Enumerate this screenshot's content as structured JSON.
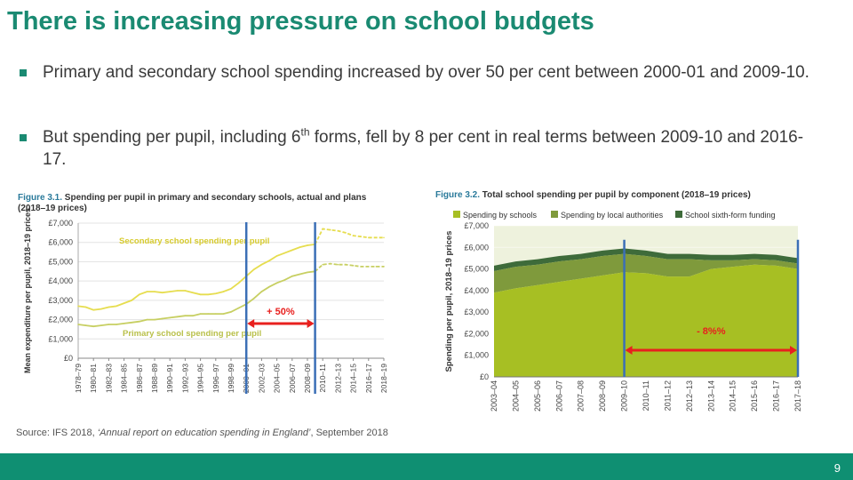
{
  "slide": {
    "title": "There is increasing pressure on school budgets",
    "bullets": [
      {
        "text": "Primary and secondary school spending increased by over 50 per cent between 2000-01 and 2009-10."
      },
      {
        "text_before": "But spending per pupil, including 6",
        "sup": "th",
        "text_after": " forms, fell by 8 per cent in real terms between 2009-10 and 2016-17."
      }
    ],
    "source_prefix": "Source: IFS 2018, ",
    "source_title": "‘Annual report on education spending in England’",
    "source_suffix": ", September 2018",
    "page_number": "9",
    "colors": {
      "title": "#1a8a72",
      "footer": "#0f8f72",
      "line": "#e6dd4f",
      "annotation_arrow": "#e8201e",
      "marker_line": "#3b6fb6",
      "area_schools": "#a7bf23",
      "area_local": "#7f9a3c",
      "area_sixth": "#3e6b3a"
    }
  },
  "chart_data": [
    {
      "type": "line",
      "figure_label": "Figure 3.1.",
      "title": "Spending per pupil in primary and secondary schools, actual and plans",
      "title_suffix": "(2018–19 prices)",
      "ylabel": "Mean expenditure per pupil, 2018–19 prices",
      "ylim": [
        0,
        7000
      ],
      "y_ticks": [
        "£0",
        "£1,000",
        "£2,000",
        "£3,000",
        "£4,000",
        "£5,000",
        "£6,000",
        "£7,000"
      ],
      "x_ticks": [
        "1978–79",
        "1980–81",
        "1982–83",
        "1984–85",
        "1986–87",
        "1988–89",
        "1990–91",
        "1992–93",
        "1994–95",
        "1996–97",
        "1998–99",
        "2000–01",
        "2002–03",
        "2004–05",
        "2006–07",
        "2008–09",
        "2010–11",
        "2012–13",
        "2014–15",
        "2016–17",
        "2018–19"
      ],
      "years": [
        1978,
        1979,
        1980,
        1981,
        1982,
        1983,
        1984,
        1985,
        1986,
        1987,
        1988,
        1989,
        1990,
        1991,
        1992,
        1993,
        1994,
        1995,
        1996,
        1997,
        1998,
        1999,
        2000,
        2001,
        2002,
        2003,
        2004,
        2005,
        2006,
        2007,
        2008,
        2009,
        2010,
        2011,
        2012,
        2013,
        2014,
        2015,
        2016,
        2017,
        2018
      ],
      "series": [
        {
          "name": "Secondary school spending per pupil",
          "solid_until": 2009,
          "values": [
            2700,
            2650,
            2500,
            2550,
            2650,
            2700,
            2850,
            3000,
            3300,
            3450,
            3450,
            3400,
            3450,
            3500,
            3500,
            3400,
            3300,
            3300,
            3350,
            3450,
            3600,
            3900,
            4250,
            4600,
            4850,
            5050,
            5300,
            5450,
            5600,
            5750,
            5850,
            5900,
            6700,
            6650,
            6600,
            6500,
            6350,
            6300,
            6250,
            6250,
            6250
          ]
        },
        {
          "name": "Primary school spending per pupil",
          "solid_until": 2009,
          "values": [
            1750,
            1700,
            1650,
            1700,
            1750,
            1750,
            1800,
            1850,
            1900,
            2000,
            2000,
            2050,
            2100,
            2150,
            2200,
            2200,
            2300,
            2300,
            2300,
            2300,
            2400,
            2600,
            2800,
            3100,
            3450,
            3700,
            3900,
            4050,
            4250,
            4350,
            4450,
            4500,
            4850,
            4900,
            4850,
            4850,
            4800,
            4750,
            4750,
            4750,
            4750
          ]
        }
      ],
      "markers": [
        2000,
        2009
      ],
      "annotation": {
        "label": "+ 50%",
        "from": 2000,
        "to": 2009
      }
    },
    {
      "type": "area",
      "figure_label": "Figure 3.2.",
      "title": "Total school spending per pupil by component (2018–19 prices)",
      "ylabel": "Spending per pupil, 2018–19 prices",
      "ylim": [
        0,
        7000
      ],
      "y_ticks": [
        "£0",
        "£1,000",
        "£2,000",
        "£3,000",
        "£4,000",
        "£5,000",
        "£6,000",
        "£7,000"
      ],
      "categories": [
        "2003–04",
        "2004–05",
        "2005–06",
        "2006–07",
        "2007–08",
        "2008–09",
        "2009–10",
        "2010–11",
        "2011–12",
        "2012–13",
        "2013–14",
        "2014–15",
        "2015–16",
        "2016–17",
        "2017–18"
      ],
      "legend": [
        "Spending by schools",
        "Spending by local authorities",
        "School sixth-form funding"
      ],
      "series": [
        {
          "name": "Spending by schools",
          "values": [
            3900,
            4100,
            4250,
            4400,
            4550,
            4700,
            4850,
            4800,
            4650,
            4650,
            5000,
            5100,
            5200,
            5150,
            5000
          ]
        },
        {
          "name": "Spending by local authorities",
          "values": [
            1000,
            1000,
            950,
            950,
            900,
            900,
            850,
            800,
            800,
            800,
            400,
            300,
            250,
            250,
            250
          ]
        },
        {
          "name": "School sixth-form funding",
          "values": [
            250,
            250,
            250,
            250,
            250,
            250,
            250,
            250,
            250,
            250,
            250,
            250,
            250,
            250,
            250
          ]
        }
      ],
      "markers": [
        "2009–10",
        "2017–18"
      ],
      "annotation": {
        "label": "- 8%%",
        "from": "2009–10",
        "to": "2017–18"
      }
    }
  ]
}
